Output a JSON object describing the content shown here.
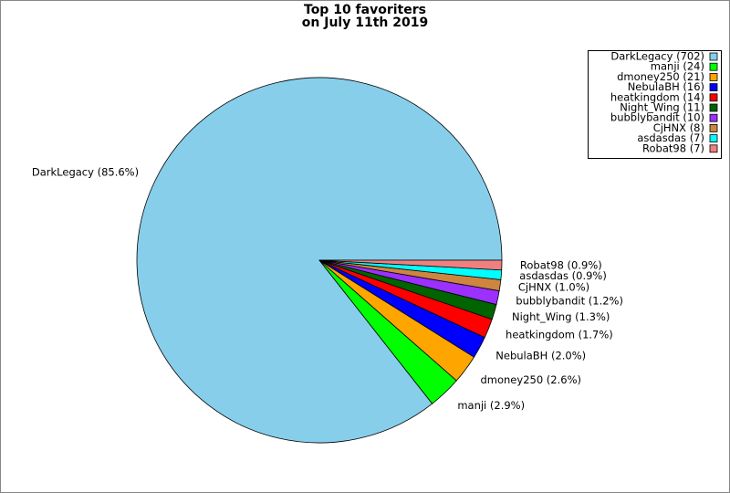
{
  "chart_data": {
    "type": "pie",
    "title": [
      "Top 10 favoriters",
      "on July 11th 2019"
    ],
    "values": [
      702,
      24,
      21,
      16,
      14,
      11,
      10,
      8,
      7,
      7
    ],
    "value_labels": [
      "DarkLegacy (85.6%)",
      "manji (2.9%)",
      "dmoney250 (2.6%)",
      "NebulaBH (2.0%)",
      "heatkingdom (1.7%)",
      "Night_Wing (1.3%)",
      "bubblybandit (1.2%)",
      "CjHNX (1.0%)",
      "asdasdas (0.9%)",
      "Robat98 (0.9%)"
    ],
    "legend_labels": [
      "DarkLegacy (702)",
      "manji (24)",
      "dmoney250 (21)",
      "NebulaBH (16)",
      "heatkingdom (14)",
      "Night_Wing (11)",
      "bubblybandit (10)",
      "CjHNX (8)",
      "asdasdas (7)",
      "Robat98 (7)"
    ],
    "colors": [
      "#87ceeb",
      "#00ff00",
      "#ffa500",
      "#0000ff",
      "#ff0000",
      "#006400",
      "#9b30ff",
      "#cd853f",
      "#00ffff",
      "#f08080"
    ],
    "legend": "upper right"
  }
}
